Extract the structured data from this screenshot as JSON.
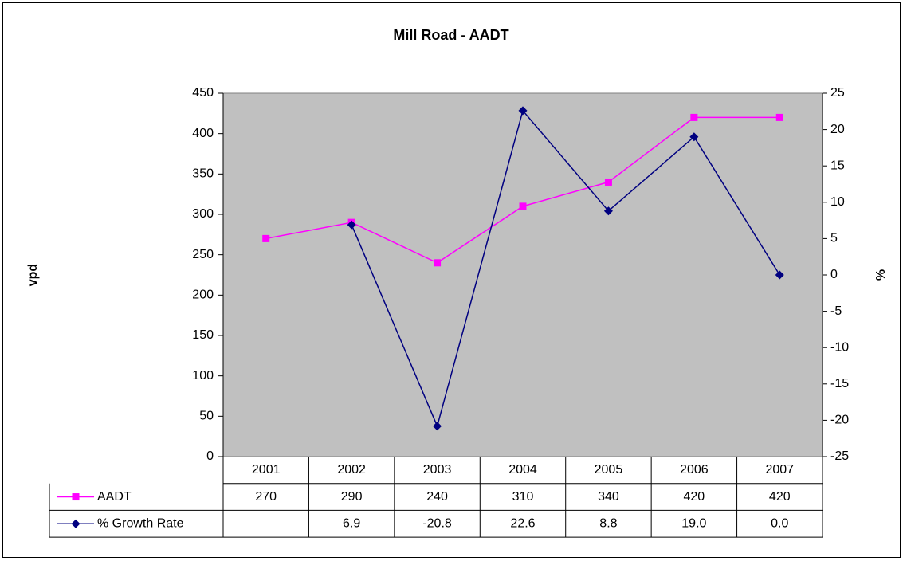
{
  "chart_data": {
    "type": "line",
    "title": "Mill Road - AADT",
    "y_label": "vpd",
    "y2_label": "%",
    "categories": [
      "2001",
      "2002",
      "2003",
      "2004",
      "2005",
      "2006",
      "2007"
    ],
    "series": [
      {
        "name": "AADT",
        "color": "#ff00ff",
        "marker": "square",
        "values": [
          270,
          290,
          240,
          310,
          340,
          420,
          420
        ]
      },
      {
        "name": "% Growth Rate",
        "color": "#000080",
        "marker": "diamond",
        "axis": "y2",
        "values": [
          null,
          6.9,
          -20.8,
          22.6,
          8.8,
          19.0,
          0.0
        ],
        "value_labels": [
          null,
          "6.9",
          "-20.8",
          "22.6",
          "8.8",
          "19.0",
          "0.0"
        ]
      }
    ],
    "ylim": [
      0,
      450
    ],
    "yticks": [
      0,
      50,
      100,
      150,
      200,
      250,
      300,
      350,
      400,
      450
    ],
    "y2lim": [
      -25,
      25
    ],
    "y2ticks": [
      -25,
      -20,
      -15,
      -10,
      -5,
      0,
      5,
      10,
      15,
      20,
      25
    ],
    "plot_background": "#c0c0c0",
    "grid": false,
    "data_table": true
  }
}
